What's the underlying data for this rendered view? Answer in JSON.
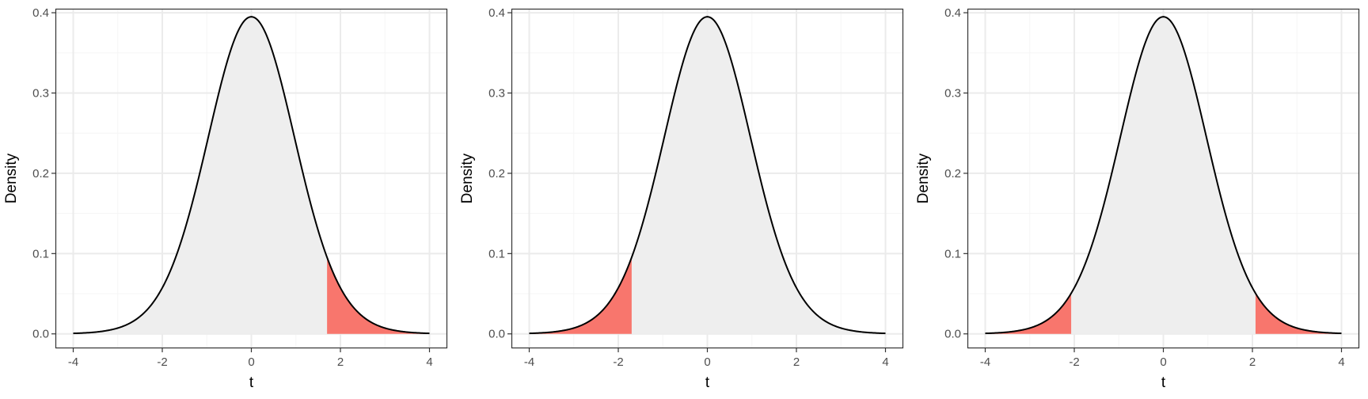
{
  "chart_data": [
    {
      "type": "area",
      "distribution": "t density",
      "xlabel": "t",
      "ylabel": "Density",
      "xlim": [
        -4,
        4
      ],
      "ylim": [
        0,
        0.4
      ],
      "x_ticks": [
        -4,
        -2,
        0,
        2,
        4
      ],
      "y_ticks": [
        0.0,
        0.1,
        0.2,
        0.3,
        0.4
      ],
      "x_tick_labels": [
        "-4",
        "-2",
        "0",
        "2",
        "4"
      ],
      "y_tick_labels": [
        "0.0",
        "0.1",
        "0.2",
        "0.3",
        "0.4"
      ],
      "shaded_regions": [
        [
          1.7,
          4
        ]
      ],
      "grid": true
    },
    {
      "type": "area",
      "distribution": "t density",
      "xlabel": "t",
      "ylabel": "Density",
      "xlim": [
        -4,
        4
      ],
      "ylim": [
        0,
        0.4
      ],
      "x_ticks": [
        -4,
        -2,
        0,
        2,
        4
      ],
      "y_ticks": [
        0.0,
        0.1,
        0.2,
        0.3,
        0.4
      ],
      "x_tick_labels": [
        "-4",
        "-2",
        "0",
        "2",
        "4"
      ],
      "y_tick_labels": [
        "0.0",
        "0.1",
        "0.2",
        "0.3",
        "0.4"
      ],
      "shaded_regions": [
        [
          -4,
          -1.7
        ]
      ],
      "grid": true
    },
    {
      "type": "area",
      "distribution": "t density",
      "xlabel": "t",
      "ylabel": "Density",
      "xlim": [
        -4,
        4
      ],
      "ylim": [
        0,
        0.4
      ],
      "x_ticks": [
        -4,
        -2,
        0,
        2,
        4
      ],
      "y_ticks": [
        0.0,
        0.1,
        0.2,
        0.3,
        0.4
      ],
      "x_tick_labels": [
        "-4",
        "-2",
        "0",
        "2",
        "4"
      ],
      "y_tick_labels": [
        "0.0",
        "0.1",
        "0.2",
        "0.3",
        "0.4"
      ],
      "shaded_regions": [
        [
          -4,
          -2.07
        ],
        [
          2.07,
          4
        ]
      ],
      "grid": true
    }
  ],
  "colors": {
    "curve_fill": "#EEEEEE",
    "tail_fill": "#F8766D",
    "curve_line": "#000000",
    "grid_major": "#EBEBEB",
    "grid_minor": "#F5F5F5",
    "panel_border": "#333333",
    "tick_text": "#4D4D4D"
  }
}
